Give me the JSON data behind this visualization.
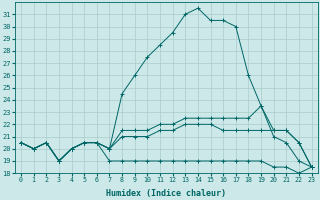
{
  "xlabel": "Humidex (Indice chaleur)",
  "ylim": [
    18,
    32
  ],
  "y_ticks": [
    18,
    19,
    20,
    21,
    22,
    23,
    24,
    25,
    26,
    27,
    28,
    29,
    30,
    31
  ],
  "background_color": "#cce8e8",
  "grid_color": "#aacccc",
  "line_color": "#006666",
  "series": [
    [
      20.5,
      20.0,
      20.5,
      19.0,
      20.0,
      20.5,
      20.5,
      20.0,
      24.5,
      26.0,
      27.5,
      28.5,
      29.5,
      31.0,
      31.5,
      30.5,
      30.5,
      30.0,
      26.0,
      23.5,
      21.0,
      20.5,
      19.0,
      18.5
    ],
    [
      20.5,
      20.0,
      20.5,
      19.0,
      20.0,
      20.5,
      20.5,
      20.0,
      21.5,
      21.5,
      21.5,
      22.0,
      22.0,
      22.5,
      22.5,
      22.5,
      22.5,
      22.5,
      22.5,
      23.5,
      21.5,
      21.5,
      20.5,
      18.5
    ],
    [
      20.5,
      20.0,
      20.5,
      19.0,
      20.0,
      20.5,
      20.5,
      19.0,
      19.0,
      19.0,
      19.0,
      19.0,
      19.0,
      19.0,
      19.0,
      19.0,
      19.0,
      19.0,
      19.0,
      19.0,
      18.5,
      18.5,
      18.0,
      18.5
    ],
    [
      20.5,
      20.0,
      20.5,
      19.0,
      20.0,
      20.5,
      20.5,
      20.0,
      21.0,
      21.0,
      21.0,
      21.5,
      21.5,
      22.0,
      22.0,
      22.0,
      21.5,
      21.5,
      21.5,
      21.5,
      21.5,
      21.5,
      20.5,
      18.5
    ]
  ]
}
